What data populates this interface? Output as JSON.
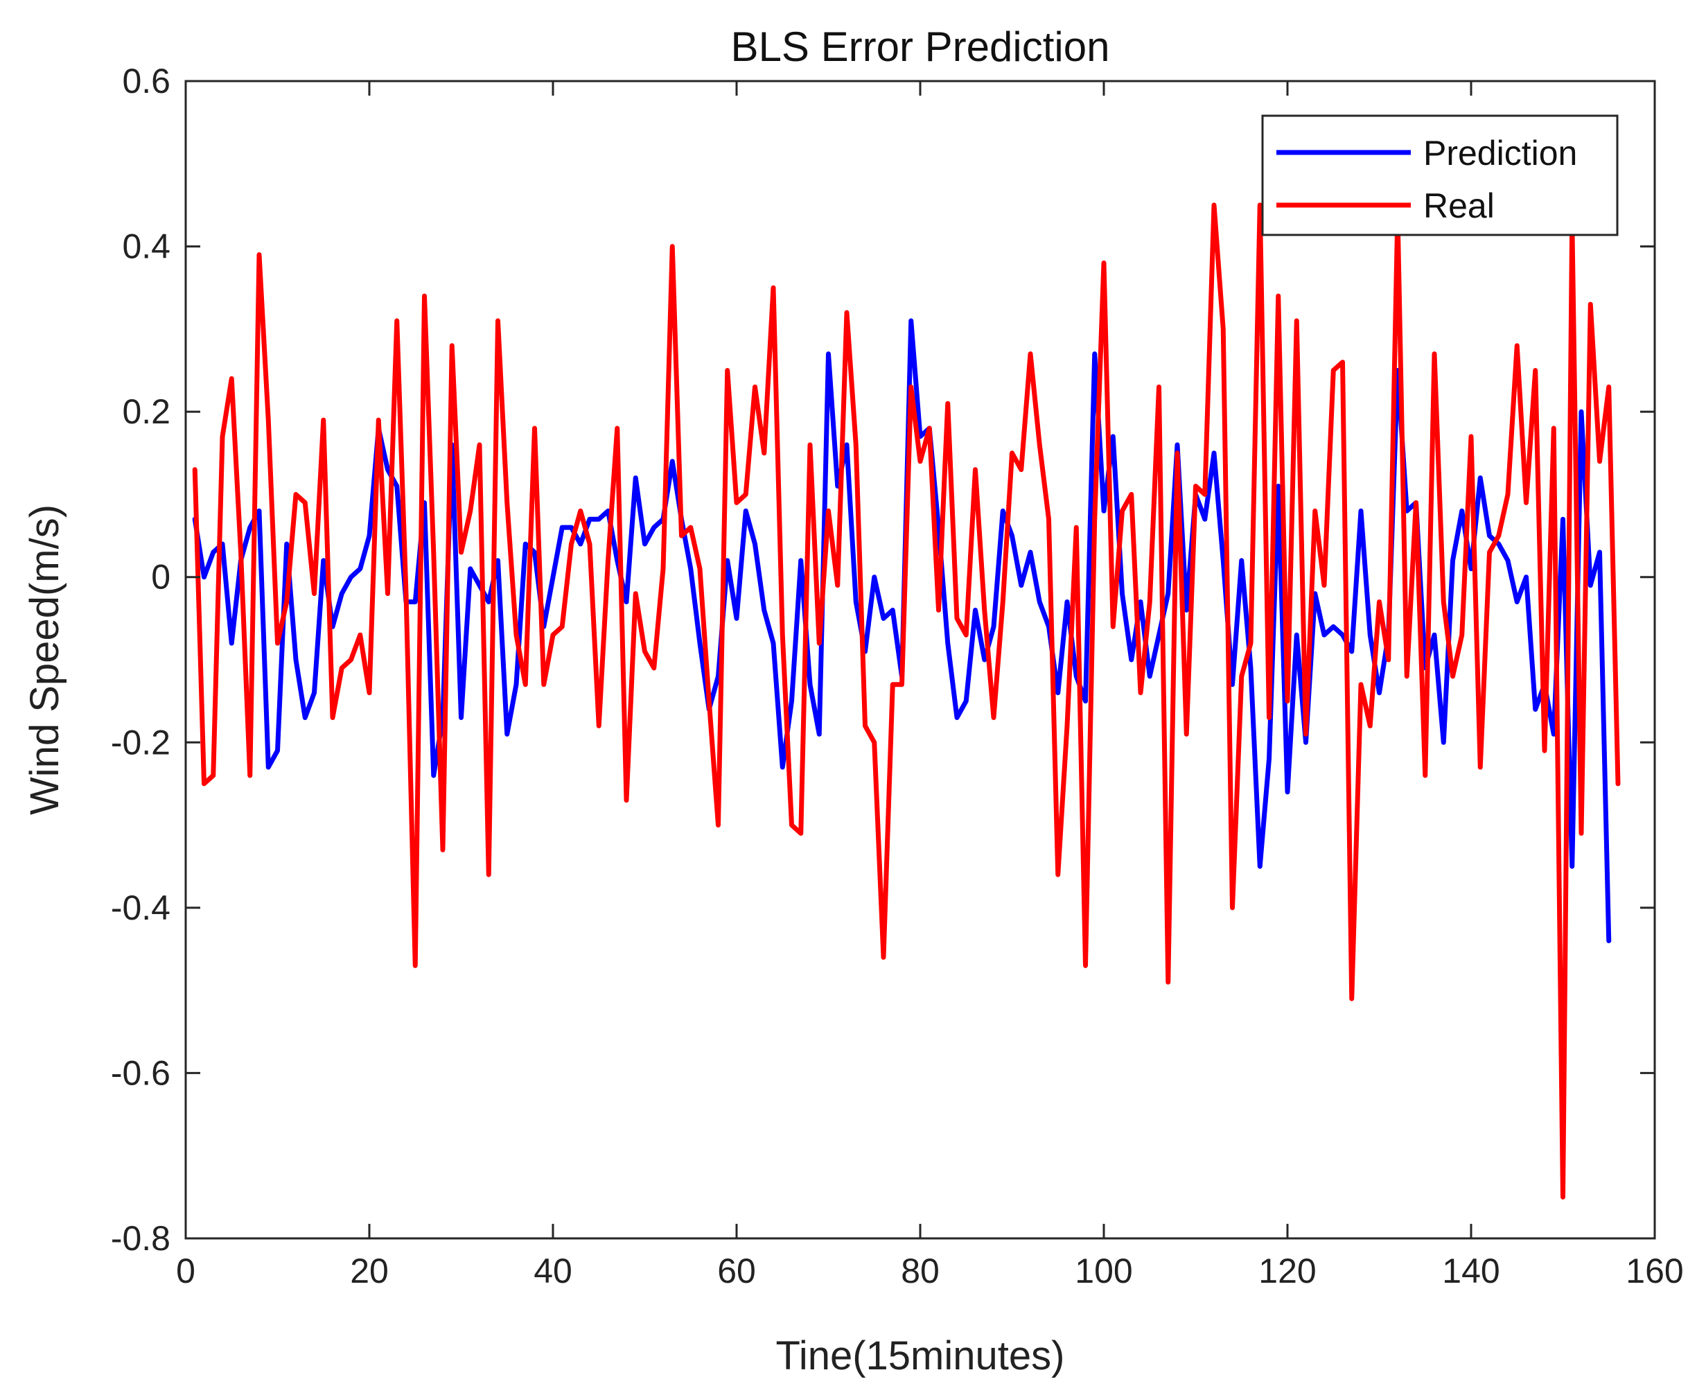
{
  "chart_data": {
    "type": "line",
    "title": "BLS Error Prediction",
    "xlabel": "Tine(15minutes)",
    "ylabel": "Wind Speed(m/s)",
    "xlim": [
      0,
      160
    ],
    "ylim": [
      -0.8,
      0.6
    ],
    "xticks": [
      0,
      20,
      40,
      60,
      80,
      100,
      120,
      140,
      160
    ],
    "yticks": [
      -0.8,
      -0.6,
      -0.4,
      -0.2,
      0,
      0.2,
      0.4,
      0.6
    ],
    "xtick_labels": [
      "0",
      "20",
      "40",
      "60",
      "80",
      "100",
      "120",
      "140",
      "160"
    ],
    "ytick_labels": [
      "-0.8",
      "-0.6",
      "-0.4",
      "-0.2",
      "0",
      "0.2",
      "0.4",
      "0.6"
    ],
    "legend_position": "top-right",
    "x_start": 1,
    "series": [
      {
        "name": "Prediction",
        "color": "#0000ff",
        "values": [
          0.07,
          0.0,
          0.03,
          0.04,
          -0.08,
          0.02,
          0.06,
          0.08,
          -0.23,
          -0.21,
          0.04,
          -0.1,
          -0.17,
          -0.14,
          0.02,
          -0.06,
          -0.02,
          0.0,
          0.01,
          0.05,
          0.18,
          0.13,
          0.11,
          -0.03,
          -0.03,
          0.09,
          -0.24,
          -0.17,
          0.16,
          -0.17,
          0.01,
          -0.01,
          -0.03,
          0.02,
          -0.19,
          -0.13,
          0.04,
          0.03,
          -0.06,
          0.0,
          0.06,
          0.06,
          0.04,
          0.07,
          0.07,
          0.08,
          0.02,
          -0.03,
          0.12,
          0.04,
          0.06,
          0.07,
          0.14,
          0.07,
          0.01,
          -0.08,
          -0.16,
          -0.12,
          0.02,
          -0.05,
          0.08,
          0.04,
          -0.04,
          -0.08,
          -0.23,
          -0.15,
          0.02,
          -0.13,
          -0.19,
          0.27,
          0.11,
          0.16,
          -0.03,
          -0.09,
          0.0,
          -0.05,
          -0.04,
          -0.12,
          0.31,
          0.17,
          0.18,
          0.06,
          -0.08,
          -0.17,
          -0.15,
          -0.04,
          -0.1,
          -0.06,
          0.08,
          0.05,
          -0.01,
          0.03,
          -0.03,
          -0.06,
          -0.14,
          -0.03,
          -0.12,
          -0.15,
          0.27,
          0.08,
          0.17,
          -0.02,
          -0.1,
          -0.03,
          -0.12,
          -0.07,
          -0.02,
          0.16,
          -0.04,
          0.1,
          0.07,
          0.15,
          0.02,
          -0.13,
          0.02,
          -0.11,
          -0.35,
          -0.22,
          0.11,
          -0.26,
          -0.07,
          -0.2,
          -0.02,
          -0.07,
          -0.06,
          -0.07,
          -0.09,
          0.08,
          -0.07,
          -0.14,
          -0.07,
          0.25,
          0.08,
          0.09,
          -0.11,
          -0.07,
          -0.2,
          0.02,
          0.08,
          0.01,
          0.12,
          0.05,
          0.04,
          0.02,
          -0.03,
          0.0,
          -0.16,
          -0.13,
          -0.19,
          0.07,
          -0.35,
          0.2,
          -0.01,
          0.03,
          -0.44
        ]
      },
      {
        "name": "Real",
        "color": "#ff0000",
        "values": [
          0.13,
          -0.25,
          -0.24,
          0.17,
          0.24,
          0.03,
          -0.24,
          0.39,
          0.19,
          -0.08,
          -0.03,
          0.1,
          0.09,
          -0.02,
          0.19,
          -0.17,
          -0.11,
          -0.1,
          -0.07,
          -0.14,
          0.19,
          -0.02,
          0.31,
          -0.02,
          -0.47,
          0.34,
          0.03,
          -0.33,
          0.28,
          0.03,
          0.08,
          0.16,
          -0.36,
          0.31,
          0.09,
          -0.07,
          -0.13,
          0.18,
          -0.13,
          -0.07,
          -0.06,
          0.04,
          0.08,
          0.04,
          -0.18,
          0.02,
          0.18,
          -0.27,
          -0.02,
          -0.09,
          -0.11,
          0.01,
          0.4,
          0.05,
          0.06,
          0.01,
          -0.15,
          -0.3,
          0.25,
          0.09,
          0.1,
          0.23,
          0.15,
          0.35,
          -0.07,
          -0.3,
          -0.31,
          0.16,
          -0.08,
          0.08,
          -0.01,
          0.32,
          0.16,
          -0.18,
          -0.2,
          -0.46,
          -0.13,
          -0.13,
          0.23,
          0.14,
          0.18,
          -0.04,
          0.21,
          -0.05,
          -0.07,
          0.13,
          -0.04,
          -0.17,
          -0.03,
          0.15,
          0.13,
          0.27,
          0.16,
          0.07,
          -0.36,
          -0.18,
          0.06,
          -0.47,
          0.07,
          0.38,
          -0.06,
          0.08,
          0.1,
          -0.14,
          -0.03,
          0.23,
          -0.49,
          0.15,
          -0.19,
          0.11,
          0.1,
          0.45,
          0.3,
          -0.4,
          -0.12,
          -0.08,
          0.45,
          -0.17,
          0.34,
          -0.15,
          0.31,
          -0.19,
          0.08,
          -0.01,
          0.25,
          0.26,
          -0.51,
          -0.13,
          -0.18,
          -0.03,
          -0.1,
          0.44,
          -0.12,
          0.09,
          -0.24,
          0.27,
          -0.03,
          -0.12,
          -0.07,
          0.17,
          -0.23,
          0.03,
          0.05,
          0.1,
          0.28,
          0.09,
          0.25,
          -0.21,
          0.18,
          -0.75,
          0.43,
          -0.31,
          0.33,
          0.14,
          0.23,
          -0.25
        ]
      }
    ]
  }
}
